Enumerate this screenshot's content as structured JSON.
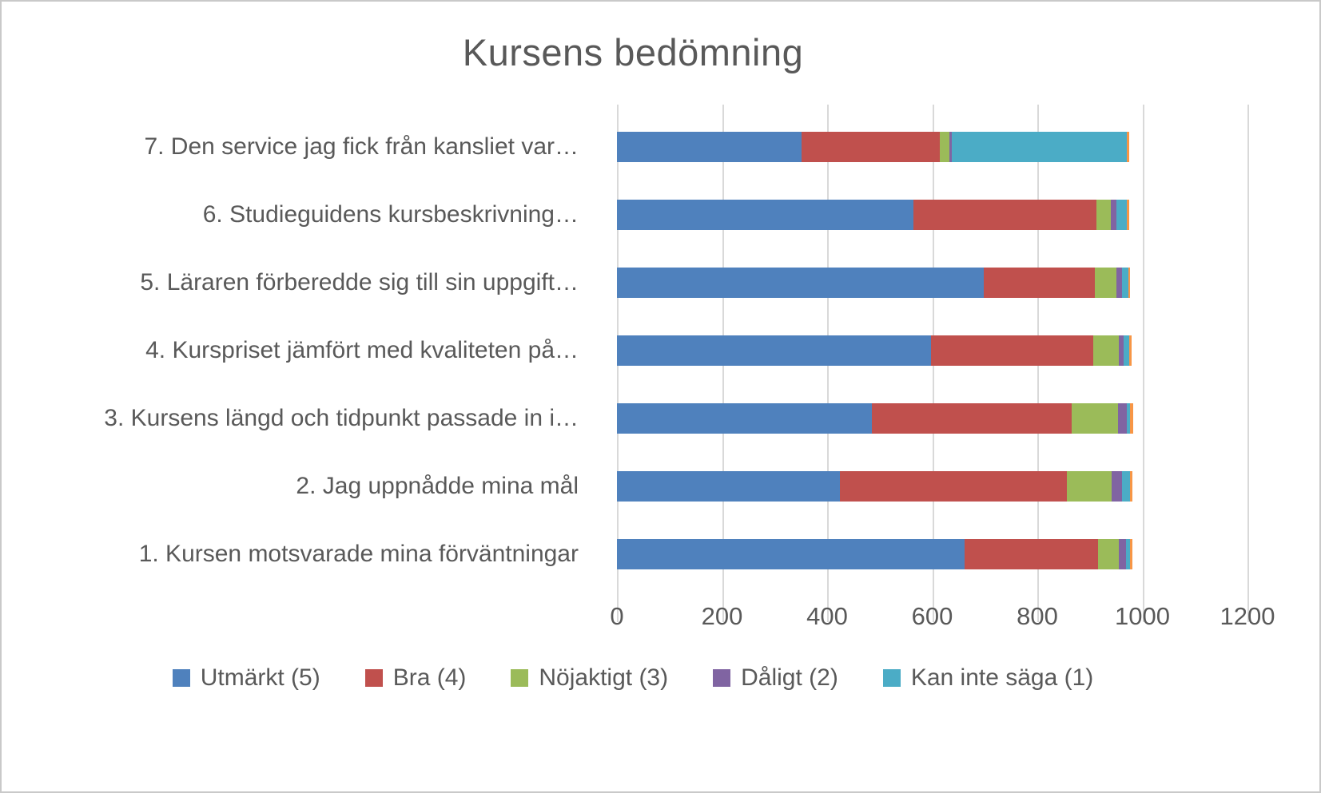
{
  "title": "Kursens bedömning",
  "text_color": "#595959",
  "gridline_color": "#d9d9d9",
  "chart_data": {
    "type": "bar",
    "orientation": "horizontal",
    "stacked": true,
    "title": "Kursens bedömning",
    "xlim": [
      0,
      1200
    ],
    "xticks": [
      "0",
      "200",
      "400",
      "600",
      "800",
      "1000",
      "1200"
    ],
    "grid": "vertical",
    "legend_position": "bottom",
    "categories": [
      "7. Den service jag fick från kansliet var…",
      "6. Studieguidens kursbeskrivning…",
      "5. Läraren förberedde sig till sin uppgift…",
      "4. Kurspriset jämfört med kvaliteten på…",
      "3. Kursens längd och tidpunkt passade in i…",
      "2. Jag uppnådde mina mål",
      "1. Kursen motsvarade mina förväntningar"
    ],
    "series": [
      {
        "name": "Utmärkt (5)",
        "color": "#4F81BD",
        "in_legend": true,
        "values": [
          351,
          564,
          698,
          597,
          485,
          424,
          662
        ]
      },
      {
        "name": "Bra (4)",
        "color": "#C0504D",
        "in_legend": true,
        "values": [
          263,
          348,
          212,
          309,
          380,
          433,
          253
        ]
      },
      {
        "name": "Nöjaktigt (3)",
        "color": "#9BBB59",
        "in_legend": true,
        "values": [
          19,
          28,
          40,
          49,
          89,
          85,
          40
        ]
      },
      {
        "name": "Dåligt (2)",
        "color": "#8064A2",
        "in_legend": true,
        "values": [
          5,
          11,
          12,
          10,
          16,
          20,
          14
        ]
      },
      {
        "name": "Kan inte säga (1)",
        "color": "#4BACC6",
        "in_legend": true,
        "values": [
          333,
          20,
          11,
          10,
          7,
          14,
          7
        ]
      },
      {
        "name": "",
        "color": "#F79646",
        "in_legend": false,
        "values": [
          4,
          4,
          4,
          4,
          5,
          5,
          5
        ]
      }
    ]
  }
}
